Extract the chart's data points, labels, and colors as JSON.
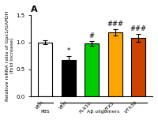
{
  "title": "A",
  "categories": [
    "VEH",
    "VEH",
    "FLX10",
    "VTX5",
    "VTX30"
  ],
  "group_label_pbs": "PBS",
  "group_label_ab": "Aβ oligomers",
  "values": [
    1.0,
    0.68,
    0.98,
    1.18,
    1.08
  ],
  "errors": [
    0.04,
    0.06,
    0.04,
    0.06,
    0.07
  ],
  "bar_colors": [
    "#ffffff",
    "#000000",
    "#00cc00",
    "#ffa500",
    "#cc4400"
  ],
  "bar_edge_colors": [
    "#000000",
    "#000000",
    "#000000",
    "#000000",
    "#000000"
  ],
  "ylabel": "Relative mRNA ratio of Gpx1/GAPDH\n(fold Increase)",
  "ylim": [
    0.0,
    1.5
  ],
  "yticks": [
    0.0,
    0.5,
    1.0,
    1.5
  ],
  "significance": [
    "",
    "*",
    "#",
    "###",
    "###"
  ],
  "background_color": "#ffffff",
  "bar_width": 0.6,
  "figsize": [
    2.0,
    1.52
  ],
  "dpi": 100
}
